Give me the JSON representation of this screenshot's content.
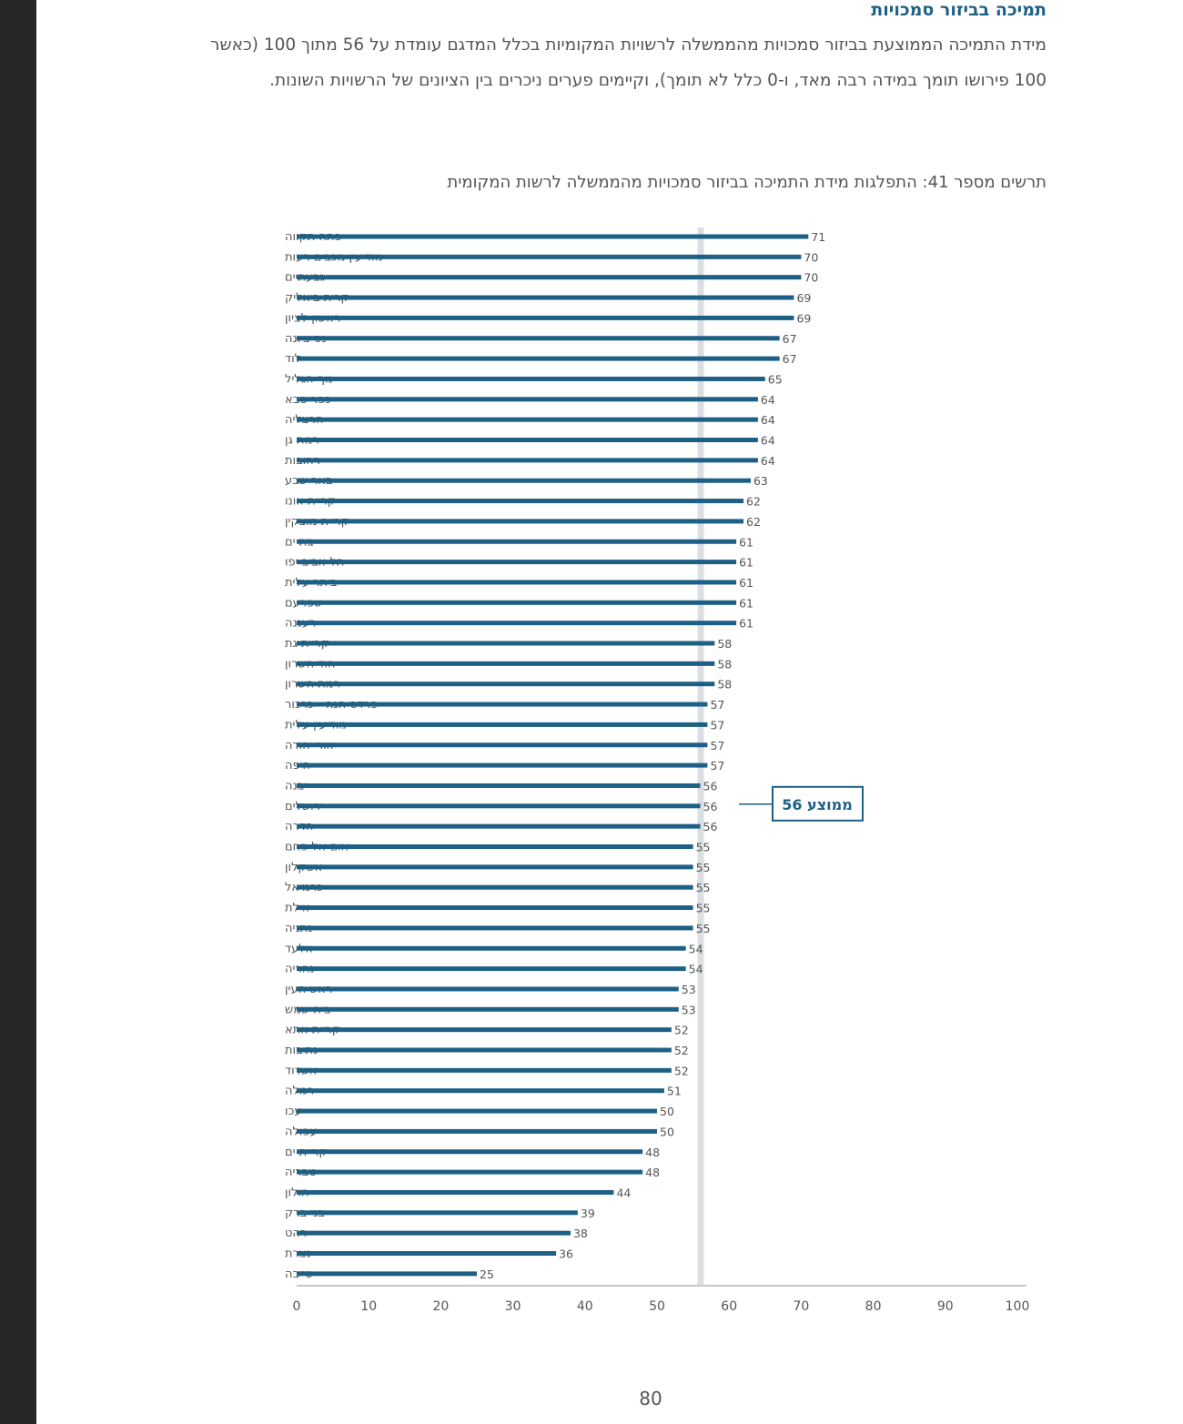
{
  "heading": "תמיכה בביזור סמכויות",
  "body_text": "מידת התמיכה הממוצעת בביזור סמכויות מהממשלה לרשויות המקומיות בכלל המדגם עומדת על 56 מתוך 100 (כאשר 100 פירושו תומך במידה רבה מאד, ו-0 כלל לא תומך), וקיימים פערים ניכרים בין הציונים של הרשויות השונות.",
  "chart_caption": "תרשים מספר 41: התפלגות מידת התמיכה בביזור סמכויות מהממשלה לרשות המקומית",
  "page_number": "80",
  "colors": {
    "bar": "#1d5f85",
    "heading": "#1d5f85",
    "mean_line": "#dcdfe2",
    "text": "#555555",
    "side_bar": "#262626"
  },
  "chart_data": {
    "type": "bar",
    "orientation": "horizontal",
    "title": "תרשים מספר 41: התפלגות מידת התמיכה בביזור סמכויות מהממשלה לרשות המקומית",
    "categories": [
      "פתח תקווה",
      "מודיעין מכבים רעות",
      "גבעתיים",
      "קרית ביאליק",
      "ראשון לציון",
      "נס ציונה",
      "לוד",
      "נוף הגליל",
      "כפר סבא",
      "הרצליה",
      "רמת גן",
      "רחובות",
      "באר שבע",
      "קריית אונו",
      "קריית מוצקין",
      "בת ים",
      "תל אביב יפו",
      "ביתר עלית",
      "שפרעם",
      "רעננה",
      "קריית גת",
      "הוד השרון",
      "רמת השרון",
      "פרדס חנה - כרכור",
      "מודיעין עלית",
      "אור יהודה",
      "חיפה",
      "יבנה",
      "ירושלים",
      "חדרה",
      "אום אל פחם",
      "אשקלון",
      "כרמיאל",
      "אילת",
      "נתניה",
      "אלעד",
      "נהריה",
      "ראש העין",
      "בית שמש",
      "קריית אתא",
      "נתיבות",
      "אשדוד",
      "רמלה",
      "עכו",
      "עפולה",
      "קריית ים",
      "טבריה",
      "חולון",
      "בני ברק",
      "רהט",
      "נצרת",
      "טייבה"
    ],
    "values": [
      71,
      70,
      70,
      69,
      69,
      67,
      67,
      65,
      64,
      64,
      64,
      64,
      63,
      62,
      62,
      61,
      61,
      61,
      61,
      61,
      58,
      58,
      58,
      57,
      57,
      57,
      57,
      56,
      56,
      56,
      55,
      55,
      55,
      55,
      55,
      54,
      54,
      53,
      53,
      52,
      52,
      52,
      51,
      50,
      50,
      48,
      48,
      44,
      39,
      38,
      36,
      25
    ],
    "xlim": [
      0,
      100
    ],
    "xticks": [
      0,
      10,
      20,
      30,
      40,
      50,
      60,
      70,
      80,
      90,
      100
    ],
    "mean_value": 56,
    "mean_label": "ממוצע 56",
    "xlabel": "",
    "ylabel": ""
  }
}
